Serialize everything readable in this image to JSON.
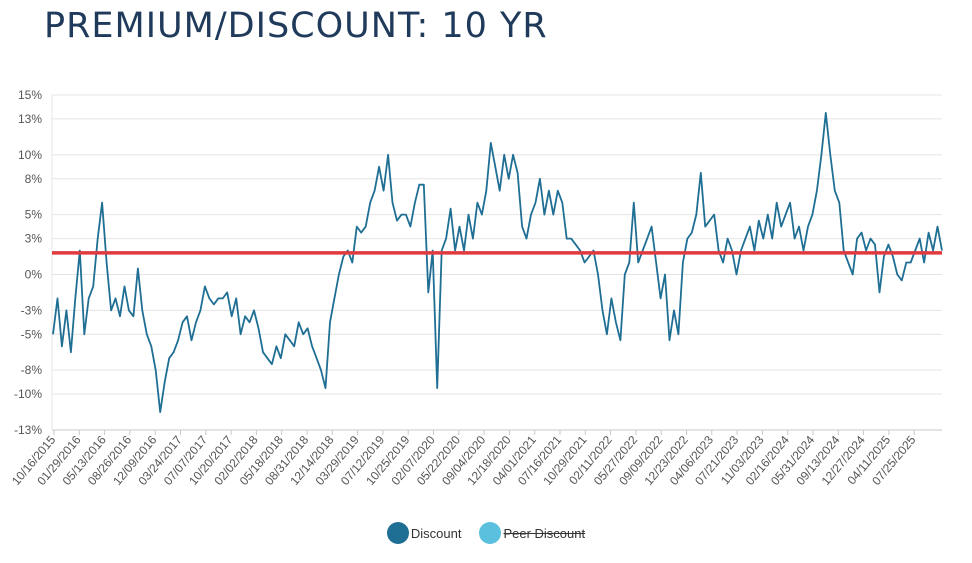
{
  "title": "PREMIUM/DISCOUNT: 10 YR",
  "chart_data": {
    "type": "line",
    "ylim": [
      -13,
      15
    ],
    "y_ticks": [
      -13,
      -10,
      -8,
      -5,
      -3,
      0,
      3,
      5,
      8,
      10,
      13,
      15
    ],
    "y_tick_labels": [
      "-13%",
      "-10%",
      "-8%",
      "-5%",
      "-3%",
      "0%",
      "3%",
      "5%",
      "8%",
      "10%",
      "13%",
      "15%"
    ],
    "x_tick_labels": [
      "10/16/2015",
      "01/29/2016",
      "05/13/2016",
      "08/26/2016",
      "12/09/2016",
      "03/24/2017",
      "07/07/2017",
      "10/20/2017",
      "02/02/2018",
      "05/18/2018",
      "08/31/2018",
      "12/14/2018",
      "03/29/2019",
      "07/12/2019",
      "10/25/2019",
      "02/07/2020",
      "05/22/2020",
      "09/04/2020",
      "12/18/2020",
      "04/01/2021",
      "07/16/2021",
      "10/29/2021",
      "02/11/2022",
      "05/27/2022",
      "09/09/2022",
      "12/23/2022",
      "04/06/2023",
      "07/21/2023",
      "11/03/2023",
      "02/16/2024",
      "05/31/2024",
      "09/13/2024",
      "12/27/2024",
      "04/11/2025",
      "07/25/2025"
    ],
    "grid": true,
    "legend_position": "bottom-center",
    "average_line": {
      "value": 1.8,
      "color": "#e0393e"
    },
    "series": [
      {
        "name": "Discount",
        "color": "#1f6e94",
        "visible": true,
        "values": [
          -5,
          -2,
          -6,
          -3,
          -6.5,
          -2,
          2,
          -5,
          -2,
          -1,
          3,
          6,
          1,
          -3,
          -2,
          -3.5,
          -1,
          -3,
          -3.5,
          0.5,
          -3,
          -5,
          -6,
          -8,
          -11.5,
          -9,
          -7,
          -6.5,
          -5.5,
          -4,
          -3.5,
          -5.5,
          -4,
          -3,
          -1,
          -2,
          -2.5,
          -2,
          -2,
          -1.5,
          -3.5,
          -2,
          -5,
          -3.5,
          -4,
          -3,
          -4.5,
          -6.5,
          -7,
          -7.5,
          -6,
          -7,
          -5,
          -5.5,
          -6,
          -4,
          -5,
          -4.5,
          -6,
          -7,
          -8,
          -9.5,
          -4,
          -2,
          0,
          1.5,
          2,
          1,
          4,
          3.5,
          4,
          6,
          7,
          9,
          7,
          10,
          6,
          4.5,
          5,
          5,
          4,
          6,
          7.5,
          7.5,
          -1.5,
          2,
          -9.5,
          2,
          3,
          5.5,
          2,
          4,
          2,
          5,
          3,
          6,
          5,
          7,
          11,
          9,
          7,
          10,
          8,
          10,
          8.5,
          4,
          3,
          5,
          6,
          8,
          5,
          7,
          5,
          7,
          6,
          3,
          3,
          2.5,
          2,
          1,
          1.5,
          2,
          0,
          -3,
          -5,
          -2,
          -4,
          -5.5,
          0,
          1,
          6,
          1,
          2,
          3,
          4,
          1,
          -2,
          0,
          -5.5,
          -3,
          -5,
          1,
          3,
          3.5,
          5,
          8.5,
          4,
          4.5,
          5,
          2,
          1,
          3,
          2,
          0,
          2,
          3,
          4,
          2,
          4.5,
          3,
          5,
          3,
          6,
          4,
          5,
          6,
          3,
          4,
          2,
          4,
          5,
          7,
          10,
          13.5,
          10,
          7,
          6,
          2,
          1,
          0,
          3,
          3.5,
          2,
          3,
          2.5,
          -1.5,
          1.5,
          2.5,
          1.5,
          0,
          -0.5,
          1,
          1,
          2,
          3,
          1,
          3.5,
          2,
          4,
          2
        ]
      },
      {
        "name": "Peer Discount",
        "color": "#5bc0de",
        "visible": false,
        "values": []
      }
    ]
  },
  "legend": [
    {
      "label": "Discount",
      "color": "#1f6e94",
      "hidden": false
    },
    {
      "label": "Peer Discount",
      "color": "#5bc0de",
      "hidden": true
    }
  ]
}
